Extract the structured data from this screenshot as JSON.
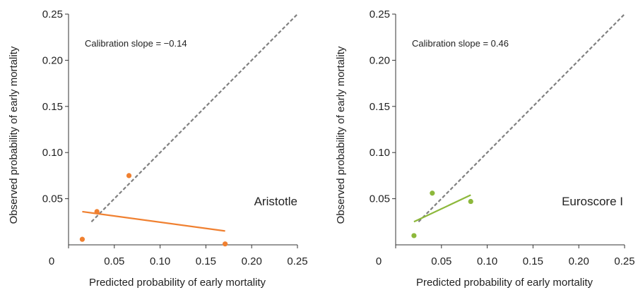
{
  "chart_data": [
    {
      "type": "scatter",
      "model_label": "Aristotle",
      "annotation": "Calibration slope = −0.14",
      "xlabel": "Predicted probability of early mortality",
      "ylabel": "Observed probability of early mortality",
      "xlim": [
        0,
        0.25
      ],
      "ylim": [
        0,
        0.25
      ],
      "x_ticks": [
        {
          "value": 0,
          "label": "0"
        },
        {
          "value": 0.05,
          "label": "0.05"
        },
        {
          "value": 0.1,
          "label": "0.10"
        },
        {
          "value": 0.15,
          "label": "0.15"
        },
        {
          "value": 0.2,
          "label": "0.20"
        },
        {
          "value": 0.25,
          "label": "0.25"
        }
      ],
      "y_ticks": [
        {
          "value": 0.05,
          "label": "0.05"
        },
        {
          "value": 0.1,
          "label": "0.10"
        },
        {
          "value": 0.15,
          "label": "0.15"
        },
        {
          "value": 0.2,
          "label": "0.20"
        },
        {
          "value": 0.25,
          "label": "0.25"
        }
      ],
      "color": "#f08030",
      "points": [
        {
          "x": 0.015,
          "y": 0.006
        },
        {
          "x": 0.031,
          "y": 0.036
        },
        {
          "x": 0.066,
          "y": 0.075
        },
        {
          "x": 0.171,
          "y": 0.001
        }
      ],
      "fit_line": [
        {
          "x": 0.015,
          "y": 0.036
        },
        {
          "x": 0.171,
          "y": 0.015
        }
      ],
      "reference_line": [
        {
          "x": 0.025,
          "y": 0.025
        },
        {
          "x": 0.25,
          "y": 0.25
        }
      ]
    },
    {
      "type": "scatter",
      "model_label": "Euroscore I",
      "annotation": "Calibration slope = 0.46",
      "xlabel": "Predicted probability of early mortality",
      "ylabel": "Observed probability of early mortality",
      "xlim": [
        0,
        0.25
      ],
      "ylim": [
        0,
        0.25
      ],
      "x_ticks": [
        {
          "value": 0,
          "label": "0"
        },
        {
          "value": 0.05,
          "label": "0.05"
        },
        {
          "value": 0.1,
          "label": "0.10"
        },
        {
          "value": 0.15,
          "label": "0.15"
        },
        {
          "value": 0.2,
          "label": "0.20"
        },
        {
          "value": 0.25,
          "label": "0.25"
        }
      ],
      "y_ticks": [
        {
          "value": 0.05,
          "label": "0.05"
        },
        {
          "value": 0.1,
          "label": "0.10"
        },
        {
          "value": 0.15,
          "label": "0.15"
        },
        {
          "value": 0.2,
          "label": "0.20"
        },
        {
          "value": 0.25,
          "label": "0.25"
        }
      ],
      "color": "#8db83b",
      "points": [
        {
          "x": 0.02,
          "y": 0.01
        },
        {
          "x": 0.04,
          "y": 0.056
        },
        {
          "x": 0.082,
          "y": 0.047
        }
      ],
      "fit_line": [
        {
          "x": 0.02,
          "y": 0.025
        },
        {
          "x": 0.082,
          "y": 0.054
        }
      ],
      "reference_line": [
        {
          "x": 0.025,
          "y": 0.025
        },
        {
          "x": 0.25,
          "y": 0.25
        }
      ]
    }
  ]
}
